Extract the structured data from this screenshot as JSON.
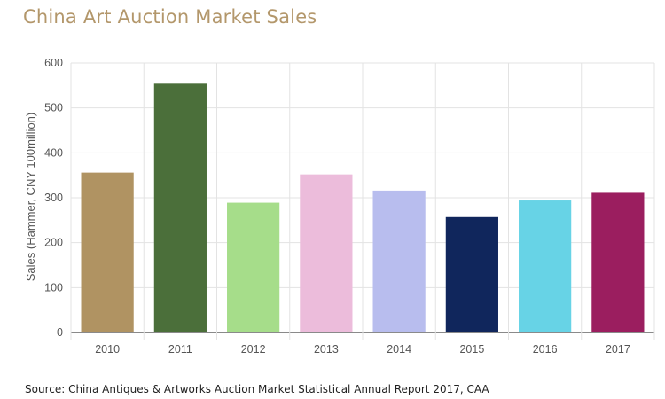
{
  "header": {
    "title": "China Art Auction Market Sales"
  },
  "footer": {
    "source": "Source: China Antiques & Artworks Auction Market Statistical Annual Report 2017, CAA"
  },
  "chart_data": {
    "type": "bar",
    "title": "China Art Auction Market Sales",
    "xlabel": "",
    "ylabel": "Sales (Hammer, CNY 100million)",
    "categories": [
      "2010",
      "2011",
      "2012",
      "2013",
      "2014",
      "2015",
      "2016",
      "2017"
    ],
    "values": [
      356,
      554,
      289,
      352,
      316,
      257,
      294,
      311
    ],
    "colors": [
      "#b09362",
      "#4b6f3a",
      "#a6dd8a",
      "#ecbcdb",
      "#b8bdee",
      "#10265c",
      "#67d3e6",
      "#9b1e5f"
    ],
    "ylim": [
      0,
      600
    ],
    "yticks": [
      0,
      100,
      200,
      300,
      400,
      500,
      600
    ],
    "grid": true
  }
}
